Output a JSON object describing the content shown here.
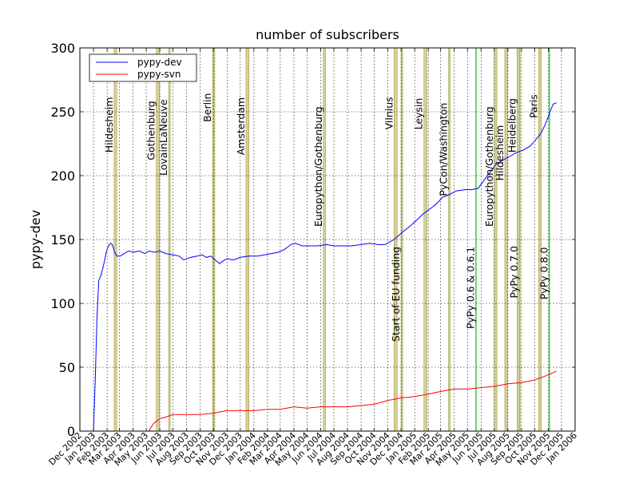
{
  "chart_data": {
    "type": "line",
    "title": "number of subscribers",
    "xlabel": "",
    "ylabel": "pypy-dev",
    "xlim": [
      "2002-12-01",
      "2006-01-01"
    ],
    "ylim": [
      0,
      300
    ],
    "grid": true,
    "legend": "top-left",
    "x_ticks": [
      "Dec 2002",
      "Jan 2003",
      "Feb 2003",
      "Mar 2003",
      "Apr 2003",
      "May 2003",
      "Jun 2003",
      "Jul 2003",
      "Aug 2003",
      "Sep 2003",
      "Oct 2003",
      "Nov 2003",
      "Dec 2003",
      "Jan 2004",
      "Feb 2004",
      "Mar 2004",
      "Apr 2004",
      "May 2004",
      "Jun 2004",
      "Jul 2004",
      "Aug 2004",
      "Sep 2004",
      "Oct 2004",
      "Nov 2004",
      "Dec 2004",
      "Jan 2005",
      "Feb 2005",
      "Mar 2005",
      "Apr 2005",
      "May 2005",
      "Jun 2005",
      "Jul 2005",
      "Aug 2005",
      "Sep 2005",
      "Oct 2005",
      "Nov 2005",
      "Dec 2005",
      "Jan 2006"
    ],
    "y_ticks": [
      0,
      50,
      100,
      150,
      200,
      250,
      300
    ],
    "series": [
      {
        "name": "pypy-dev",
        "color": "#0000ff",
        "points": [
          [
            "2003-01-01",
            0
          ],
          [
            "2003-01-05",
            40
          ],
          [
            "2003-01-09",
            90
          ],
          [
            "2003-01-13",
            118
          ],
          [
            "2003-01-18",
            122
          ],
          [
            "2003-01-24",
            130
          ],
          [
            "2003-01-30",
            140
          ],
          [
            "2003-02-04",
            145
          ],
          [
            "2003-02-09",
            147
          ],
          [
            "2003-02-13",
            146
          ],
          [
            "2003-02-18",
            140
          ],
          [
            "2003-02-23",
            137
          ],
          [
            "2003-03-03",
            137
          ],
          [
            "2003-03-12",
            139
          ],
          [
            "2003-03-22",
            141
          ],
          [
            "2003-04-02",
            140
          ],
          [
            "2003-04-15",
            141
          ],
          [
            "2003-04-28",
            139
          ],
          [
            "2003-05-08",
            141
          ],
          [
            "2003-05-20",
            140
          ],
          [
            "2003-06-01",
            141
          ],
          [
            "2003-06-15",
            139
          ],
          [
            "2003-07-01",
            138
          ],
          [
            "2003-07-15",
            137
          ],
          [
            "2003-07-25",
            134
          ],
          [
            "2003-08-10",
            136
          ],
          [
            "2003-08-25",
            137
          ],
          [
            "2003-09-05",
            138
          ],
          [
            "2003-09-15",
            136
          ],
          [
            "2003-09-25",
            137
          ],
          [
            "2003-10-05",
            134
          ],
          [
            "2003-10-15",
            131
          ],
          [
            "2003-10-22",
            133
          ],
          [
            "2003-11-01",
            135
          ],
          [
            "2003-11-15",
            134
          ],
          [
            "2003-12-01",
            136
          ],
          [
            "2003-12-20",
            137
          ],
          [
            "2004-01-10",
            137
          ],
          [
            "2004-01-25",
            138
          ],
          [
            "2004-02-10",
            139
          ],
          [
            "2004-02-25",
            140
          ],
          [
            "2004-03-10",
            142
          ],
          [
            "2004-03-25",
            146
          ],
          [
            "2004-04-05",
            147
          ],
          [
            "2004-04-20",
            145
          ],
          [
            "2004-05-05",
            145
          ],
          [
            "2004-05-25",
            145
          ],
          [
            "2004-06-15",
            146
          ],
          [
            "2004-07-01",
            145
          ],
          [
            "2004-07-20",
            145
          ],
          [
            "2004-08-10",
            145
          ],
          [
            "2004-09-01",
            146
          ],
          [
            "2004-09-20",
            147
          ],
          [
            "2004-10-10",
            146
          ],
          [
            "2004-10-25",
            146
          ],
          [
            "2004-11-05",
            148
          ],
          [
            "2004-11-15",
            150
          ],
          [
            "2004-11-25",
            153
          ],
          [
            "2004-12-05",
            156
          ],
          [
            "2004-12-20",
            160
          ],
          [
            "2005-01-05",
            165
          ],
          [
            "2005-01-20",
            170
          ],
          [
            "2005-02-05",
            174
          ],
          [
            "2005-02-20",
            178
          ],
          [
            "2005-03-05",
            183
          ],
          [
            "2005-03-20",
            185
          ],
          [
            "2005-04-05",
            188
          ],
          [
            "2005-04-25",
            189
          ],
          [
            "2005-05-10",
            189
          ],
          [
            "2005-05-25",
            190
          ],
          [
            "2005-06-05",
            195
          ],
          [
            "2005-06-20",
            202
          ],
          [
            "2005-07-05",
            209
          ],
          [
            "2005-07-20",
            212
          ],
          [
            "2005-08-05",
            215
          ],
          [
            "2005-08-20",
            218
          ],
          [
            "2005-09-05",
            220
          ],
          [
            "2005-09-20",
            223
          ],
          [
            "2005-10-01",
            227
          ],
          [
            "2005-10-15",
            233
          ],
          [
            "2005-10-25",
            240
          ],
          [
            "2005-11-05",
            250
          ],
          [
            "2005-11-12",
            256
          ],
          [
            "2005-11-20",
            257
          ]
        ]
      },
      {
        "name": "pypy-svn",
        "color": "#ff0000",
        "points": [
          [
            "2003-05-07",
            0
          ],
          [
            "2003-05-12",
            3
          ],
          [
            "2003-05-18",
            6
          ],
          [
            "2003-05-25",
            8
          ],
          [
            "2003-06-03",
            10
          ],
          [
            "2003-06-15",
            11
          ],
          [
            "2003-07-01",
            13
          ],
          [
            "2003-08-01",
            13
          ],
          [
            "2003-09-01",
            13
          ],
          [
            "2003-10-01",
            14
          ],
          [
            "2003-10-15",
            15
          ],
          [
            "2003-11-01",
            16
          ],
          [
            "2003-12-01",
            16
          ],
          [
            "2004-01-01",
            16
          ],
          [
            "2004-02-01",
            17
          ],
          [
            "2004-03-01",
            17
          ],
          [
            "2004-04-01",
            19
          ],
          [
            "2004-05-01",
            18
          ],
          [
            "2004-06-01",
            19
          ],
          [
            "2004-07-01",
            19
          ],
          [
            "2004-08-01",
            19
          ],
          [
            "2004-09-01",
            20
          ],
          [
            "2004-10-01",
            21
          ],
          [
            "2004-11-01",
            24
          ],
          [
            "2004-12-01",
            26
          ],
          [
            "2005-01-01",
            27
          ],
          [
            "2005-02-01",
            29
          ],
          [
            "2005-03-01",
            31
          ],
          [
            "2005-04-01",
            33
          ],
          [
            "2005-05-01",
            33
          ],
          [
            "2005-06-01",
            34
          ],
          [
            "2005-07-01",
            35
          ],
          [
            "2005-08-01",
            37
          ],
          [
            "2005-09-01",
            38
          ],
          [
            "2005-10-01",
            40
          ],
          [
            "2005-11-01",
            44
          ],
          [
            "2005-11-20",
            47
          ]
        ]
      }
    ],
    "events": [
      {
        "label": "Hildesheim",
        "start": "2003-02-17",
        "end": "2003-02-23",
        "label_y": 218
      },
      {
        "label": "Gothenburg",
        "start": "2003-05-24",
        "end": "2003-05-31",
        "label_y": 212
      },
      {
        "label": "LovainLaNeuve",
        "start": "2003-06-21",
        "end": "2003-06-23",
        "label_y": 200
      },
      {
        "label": "Berlin",
        "start": "2003-09-29",
        "end": "2003-10-04",
        "label_y": 242
      },
      {
        "label": "Amsterdam",
        "start": "2003-12-14",
        "end": "2003-12-21",
        "label_y": 216
      },
      {
        "label": "Europython/Gothenburg",
        "start": "2004-06-07",
        "end": "2004-06-12",
        "label_y": 160
      },
      {
        "label": "Vilnius",
        "start": "2004-11-15",
        "end": "2004-11-22",
        "label_y": 236
      },
      {
        "label": "Start of EU funding",
        "start": "2004-12-01",
        "end": "2004-12-03",
        "label_y": 70
      },
      {
        "label": "Leysin",
        "start": "2005-01-22",
        "end": "2005-01-29",
        "label_y": 236
      },
      {
        "label": "PyCon/Washington",
        "start": "2005-03-19",
        "end": "2005-03-22",
        "label_y": 184
      },
      {
        "label": "PyPy 0.6 & 0.6.1",
        "start": "2005-05-20",
        "end": "2005-05-21",
        "label_y": 80
      },
      {
        "label": "Europython/Gothenburg",
        "start": "2005-07-01",
        "end": "2005-07-07",
        "label_y": 160
      },
      {
        "label": "Hildesheim",
        "start": "2005-07-25",
        "end": "2005-07-31",
        "label_y": 196
      },
      {
        "label": "PyPy 0.7.0",
        "start": "2005-08-27",
        "end": "2005-08-28",
        "label_y": 104
      },
      {
        "label": "Heidelberg",
        "start": "2005-08-22",
        "end": "2005-08-29",
        "label_y": 218
      },
      {
        "label": "Paris",
        "start": "2005-10-10",
        "end": "2005-10-16",
        "label_y": 245
      },
      {
        "label": "PyPy 0.8.0",
        "start": "2005-11-03",
        "end": "2005-11-04",
        "label_y": 103
      }
    ],
    "event_colors": {
      "sprint_fill": "#c8c07a",
      "sprint_edge": "#9c9c40",
      "release": "#33cc33"
    }
  }
}
